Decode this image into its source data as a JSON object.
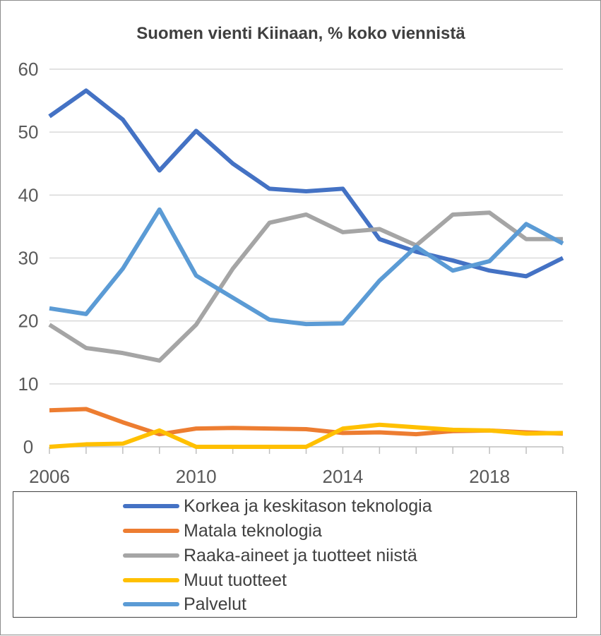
{
  "chart_data": {
    "type": "line",
    "title": "Suomen vienti Kiinaan, % koko viennistä",
    "xlabel": "",
    "ylabel": "",
    "x": [
      2006,
      2007,
      2008,
      2009,
      2010,
      2011,
      2012,
      2013,
      2014,
      2015,
      2016,
      2017,
      2018,
      2019,
      2020
    ],
    "xlim": [
      2006,
      2020
    ],
    "ylim": [
      0,
      60
    ],
    "x_ticks": [
      "2006",
      "2010",
      "2014",
      "2018"
    ],
    "y_ticks": [
      "0",
      "10",
      "20",
      "30",
      "40",
      "50",
      "60"
    ],
    "grid": true,
    "legend_position": "bottom",
    "series": [
      {
        "name": "Korkea ja keskitason teknologia",
        "color": "#4472c4",
        "values": [
          52.5,
          56.6,
          52.0,
          43.9,
          50.2,
          45.0,
          41.0,
          40.6,
          41.0,
          33.0,
          31.0,
          29.6,
          28.0,
          27.1,
          30.0
        ]
      },
      {
        "name": "Matala teknologia",
        "color": "#ed7d31",
        "values": [
          5.8,
          6.0,
          3.9,
          2.0,
          2.9,
          3.0,
          2.9,
          2.8,
          2.2,
          2.3,
          2.0,
          2.5,
          2.6,
          2.3,
          2.1
        ]
      },
      {
        "name": "Raaka-aineet ja tuotteet niistä",
        "color": "#a5a5a5",
        "values": [
          19.4,
          15.7,
          14.9,
          13.7,
          19.4,
          28.3,
          35.6,
          36.9,
          34.1,
          34.6,
          32.0,
          36.9,
          37.2,
          33.0,
          33.0
        ]
      },
      {
        "name": "Muut tuotteet",
        "color": "#ffc000",
        "values": [
          0.0,
          0.4,
          0.5,
          2.6,
          0.0,
          0.0,
          0.0,
          0.0,
          2.9,
          3.5,
          3.1,
          2.7,
          2.6,
          2.1,
          2.2
        ]
      },
      {
        "name": "Palvelut",
        "color": "#5b9bd5",
        "values": [
          22.0,
          21.1,
          28.3,
          37.7,
          27.2,
          23.7,
          20.2,
          19.5,
          19.6,
          26.4,
          31.8,
          28.0,
          29.5,
          35.4,
          32.3
        ]
      }
    ]
  }
}
